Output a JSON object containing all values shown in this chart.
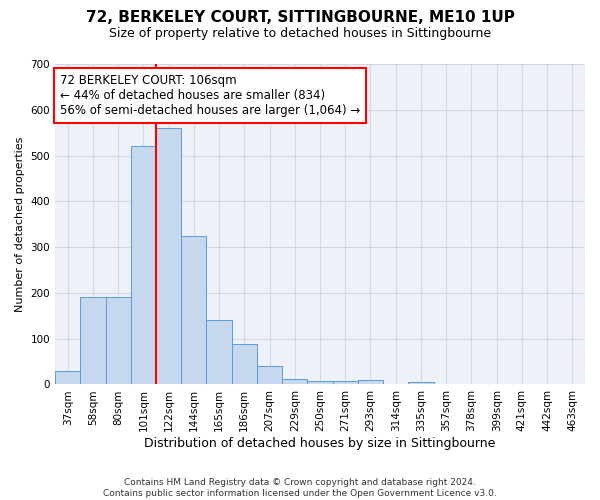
{
  "title": "72, BERKELEY COURT, SITTINGBOURNE, ME10 1UP",
  "subtitle": "Size of property relative to detached houses in Sittingbourne",
  "xlabel": "Distribution of detached houses by size in Sittingbourne",
  "ylabel": "Number of detached properties",
  "footer_line1": "Contains HM Land Registry data © Crown copyright and database right 2024.",
  "footer_line2": "Contains public sector information licensed under the Open Government Licence v3.0.",
  "categories": [
    "37sqm",
    "58sqm",
    "80sqm",
    "101sqm",
    "122sqm",
    "144sqm",
    "165sqm",
    "186sqm",
    "207sqm",
    "229sqm",
    "250sqm",
    "271sqm",
    "293sqm",
    "314sqm",
    "335sqm",
    "357sqm",
    "378sqm",
    "399sqm",
    "421sqm",
    "442sqm",
    "463sqm"
  ],
  "values": [
    30,
    190,
    190,
    520,
    560,
    325,
    140,
    88,
    40,
    12,
    8,
    8,
    10,
    0,
    6,
    0,
    0,
    0,
    0,
    0,
    0
  ],
  "bar_color": "#c5d8ed",
  "bar_edge_color": "#5b9bd5",
  "grid_color": "#d0d8e8",
  "bg_color": "#eef2f8",
  "property_line_color": "red",
  "property_line_x": 3.5,
  "annotation_line1": "72 BERKELEY COURT: 106sqm",
  "annotation_line2": "← 44% of detached houses are smaller (834)",
  "annotation_line3": "56% of semi-detached houses are larger (1,064) →",
  "annotation_box_color": "red",
  "ylim": [
    0,
    700
  ],
  "yticks": [
    0,
    100,
    200,
    300,
    400,
    500,
    600,
    700
  ],
  "title_fontsize": 11,
  "subtitle_fontsize": 9,
  "annotation_fontsize": 8.5,
  "ylabel_fontsize": 8,
  "xlabel_fontsize": 9,
  "tick_fontsize": 7.5
}
